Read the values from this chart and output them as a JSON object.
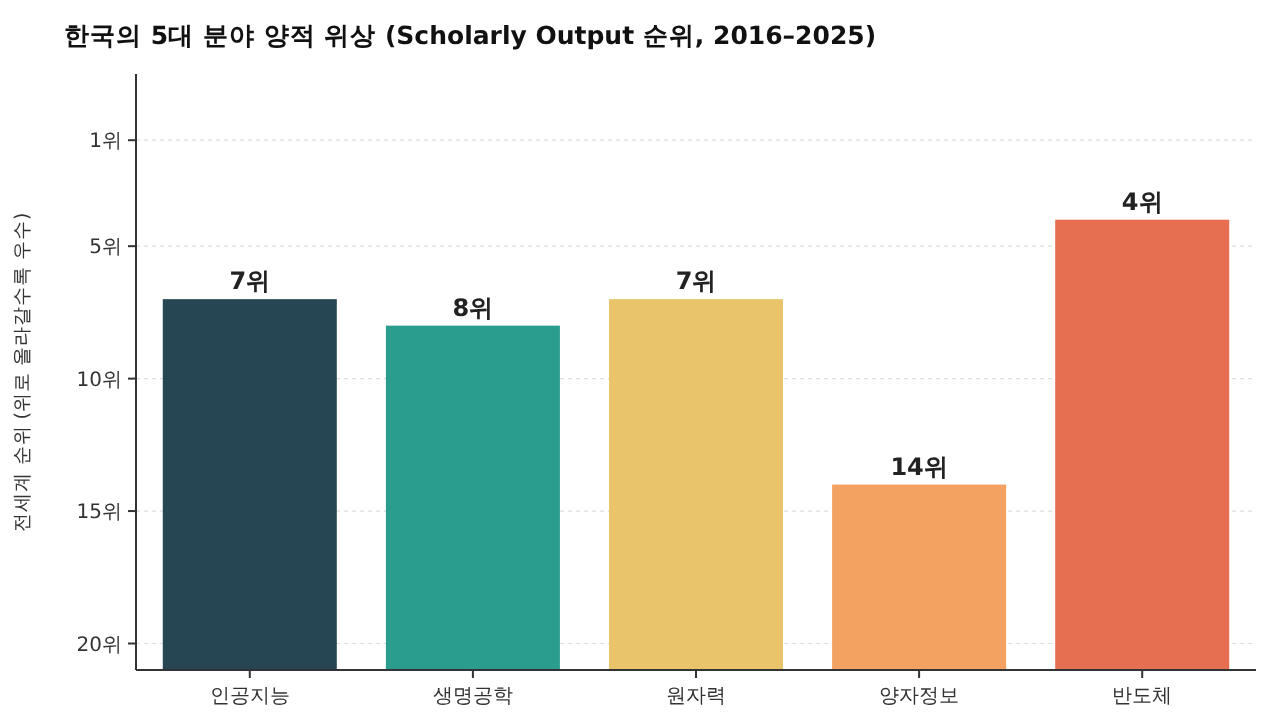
{
  "chart_data": {
    "type": "bar",
    "title": "한국의 5대 분야 양적 위상 (Scholarly Output 순위, 2016–2025)",
    "ylabel": "전세계 순위 (위로 올라갈수록 우수)",
    "categories": [
      "인공지능",
      "생명공학",
      "원자력",
      "양자정보",
      "반도체"
    ],
    "values": [
      -14,
      -13,
      -14,
      -7,
      -17
    ],
    "base": [
      21,
      21,
      21,
      21,
      21
    ],
    "colors": [
      "#264653",
      "#2a9d8f",
      "#e9c46a",
      "#f4a261",
      "#e76f51"
    ],
    "value_labels": [
      "7위",
      "8위",
      "7위",
      "14위",
      "4위"
    ],
    "ylim": [
      21,
      -1.5
    ],
    "yticks": [
      {
        "value": 1,
        "label": "1위"
      },
      {
        "value": 5,
        "label": "5위"
      },
      {
        "value": 10,
        "label": "10위"
      },
      {
        "value": 15,
        "label": "15위"
      },
      {
        "value": 20,
        "label": "20위"
      }
    ],
    "grid": "y"
  }
}
